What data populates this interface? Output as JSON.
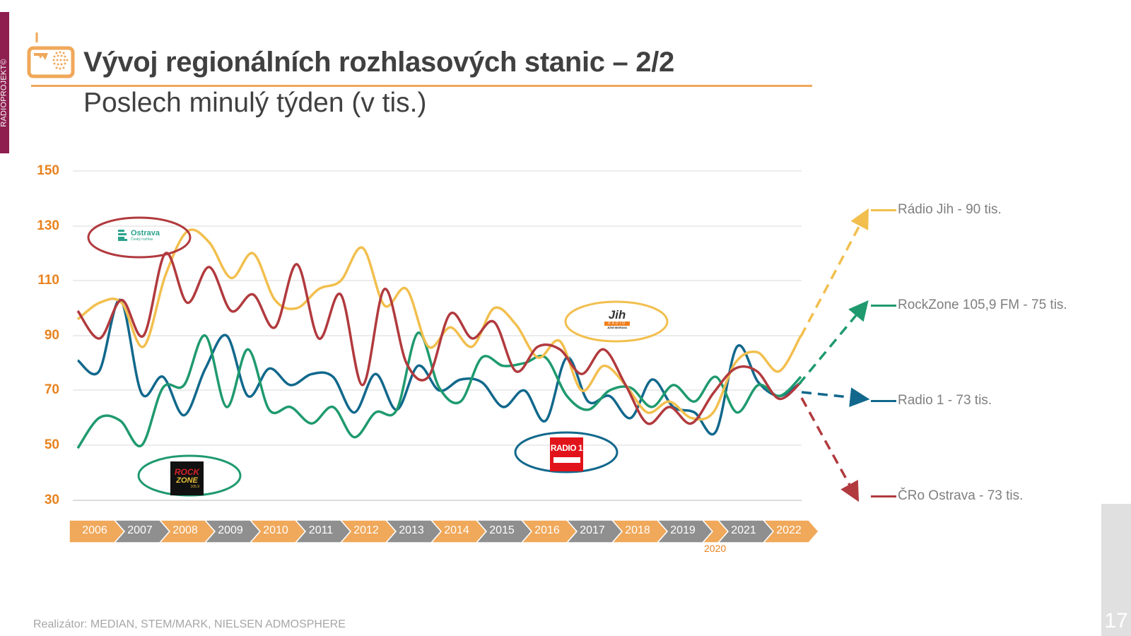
{
  "sidebar": {
    "brand": "RADIOPROJEKT©"
  },
  "header": {
    "icon": "radio-icon",
    "title": "Vývoj regionálních rozhlasových stanic – 2/2",
    "subtitle": "Poslech minulý týden (v tis.)"
  },
  "chart": {
    "yticks": [
      "150",
      "130",
      "110",
      "90",
      "70",
      "50",
      "30"
    ],
    "timeline": [
      "2006",
      "2007",
      "2008",
      "2009",
      "2010",
      "2011",
      "2012",
      "2013",
      "2014",
      "2015",
      "2016",
      "2017",
      "2018",
      "2019",
      "",
      "2021",
      "2022"
    ],
    "label_2020": "2020",
    "legend": [
      {
        "label": "Rádio Jih - 90 tis.",
        "color": "#f2bf4e"
      },
      {
        "label": "RockZone 105,9 FM - 75 tis.",
        "color": "#1f9a6e"
      },
      {
        "label": "Radio 1 - 73 tis.",
        "color": "#11688c"
      },
      {
        "label": "ČRo Ostrava - 73 tis.",
        "color": "#b13a3e"
      }
    ],
    "logos": {
      "ostrava": {
        "name": "Ostrava",
        "sub": "Český rozhlas"
      },
      "rockzone": {
        "line1": "ROCK",
        "line2": "ZONE",
        "line3": "105,9"
      },
      "radio1": {
        "text": "RADIO 1"
      },
      "jih": {
        "j": "Jih",
        "r": "RADIO",
        "m": "JIŽNÍ MORAVA"
      }
    }
  },
  "chart_data": {
    "type": "line",
    "title": "Vývoj regionálních rozhlasových stanic – 2/2",
    "subtitle": "Poslech minulý týden (v tis.)",
    "xlabel": "",
    "ylabel": "",
    "ylim": [
      30,
      150
    ],
    "yticks": [
      30,
      50,
      70,
      90,
      110,
      130,
      150
    ],
    "grid": true,
    "legend_position": "right",
    "categories": [
      "2006",
      "2007",
      "2008",
      "2009",
      "2010",
      "2011",
      "2012",
      "2013",
      "2014",
      "2015",
      "2016",
      "2017",
      "2018",
      "2019",
      "2020",
      "2021",
      "2022"
    ],
    "series": [
      {
        "name": "Rádio Jih",
        "color": "#f2bf4e",
        "final_label": "90 tis.",
        "values": [
          96,
          102,
          102,
          86,
          112,
          128,
          124,
          111,
          120,
          103,
          100,
          107,
          110,
          122,
          101,
          107,
          86,
          93,
          86,
          100,
          94,
          82,
          88,
          70,
          79,
          72,
          62,
          66,
          60,
          62,
          80,
          84,
          77,
          90
        ]
      },
      {
        "name": "RockZone 105,9 FM",
        "color": "#1f9a6e",
        "final_label": "75 tis.",
        "values": [
          49,
          60,
          59,
          50,
          71,
          72,
          90,
          64,
          85,
          63,
          64,
          58,
          64,
          53,
          62,
          63,
          91,
          71,
          66,
          82,
          79,
          80,
          82,
          68,
          63,
          70,
          71,
          64,
          72,
          66,
          75,
          62,
          72,
          68,
          75
        ]
      },
      {
        "name": "Radio 1",
        "color": "#11688c",
        "final_label": "73 tis.",
        "values": [
          81,
          77,
          103,
          69,
          75,
          61,
          78,
          90,
          68,
          78,
          72,
          76,
          75,
          62,
          76,
          63,
          79,
          70,
          74,
          73,
          64,
          70,
          59,
          82,
          66,
          68,
          60,
          74,
          64,
          62,
          55,
          86,
          73,
          68,
          73
        ]
      },
      {
        "name": "ČRo Ostrava",
        "color": "#b13a3e",
        "final_label": "73 tis.",
        "values": [
          99,
          89,
          103,
          90,
          120,
          102,
          115,
          99,
          105,
          93,
          116,
          89,
          105,
          72,
          107,
          80,
          75,
          98,
          89,
          95,
          77,
          86,
          85,
          76,
          85,
          72,
          58,
          64,
          58,
          69,
          78,
          77,
          67,
          73
        ]
      }
    ],
    "projections": [
      {
        "series": "Rádio Jih",
        "direction": "up",
        "label": "Rádio Jih - 90 tis."
      },
      {
        "series": "RockZone 105,9 FM",
        "direction": "up",
        "label": "RockZone 105,9 FM - 75 tis."
      },
      {
        "series": "Radio 1",
        "direction": "flat",
        "label": "Radio 1 - 73 tis."
      },
      {
        "series": "ČRo Ostrava",
        "direction": "down",
        "label": "ČRo Ostrava - 73 tis."
      }
    ]
  },
  "footer": {
    "source": "Realizátor: MEDIAN, STEM/MARK, NIELSEN ADMOSPHERE",
    "page": "17"
  }
}
